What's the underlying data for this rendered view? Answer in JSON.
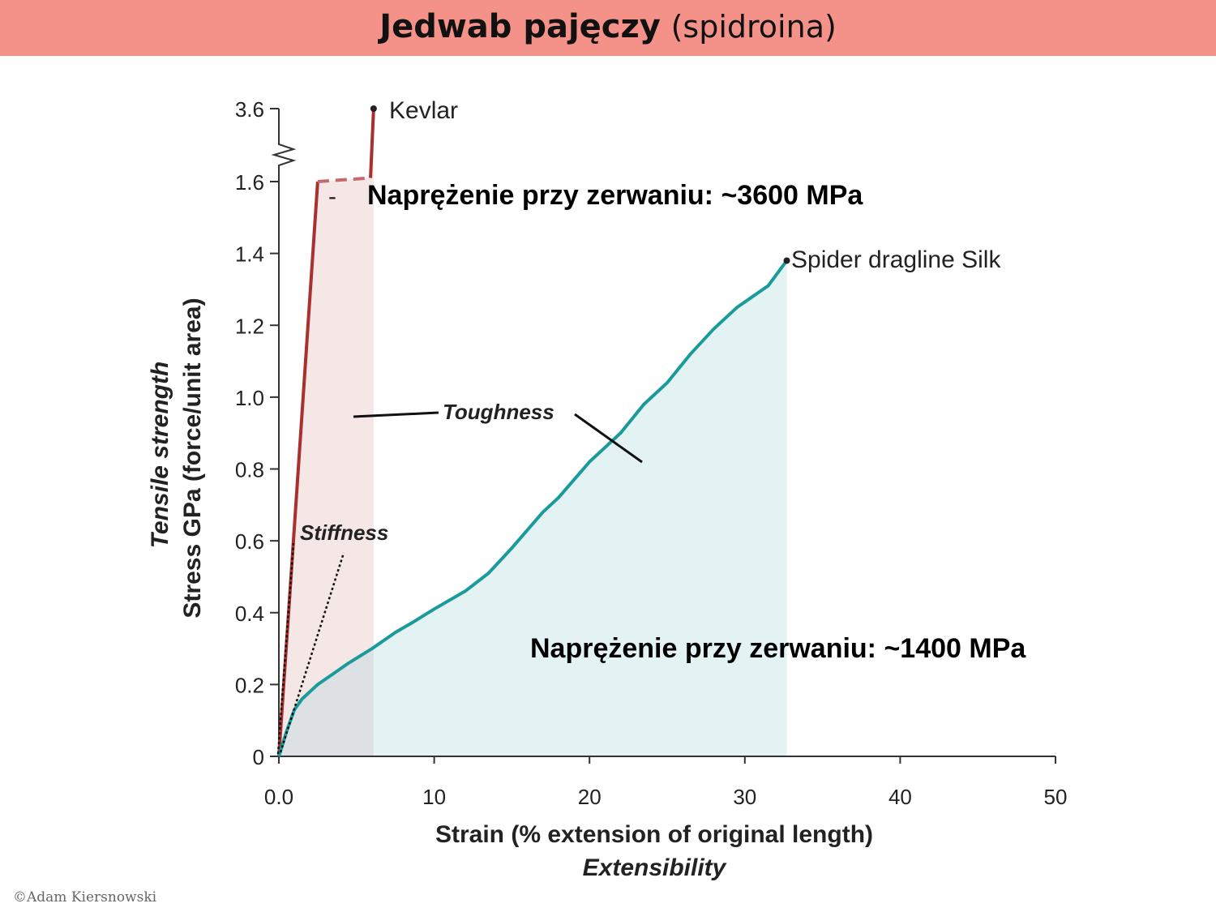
{
  "slide": {
    "title_bold": "Jedwab pajęczy",
    "title_normal": "(spidroina)",
    "copyright": "©Adam Kiersnowski"
  },
  "notes": {
    "kevlar_bullet": "-",
    "kevlar_stress": "Naprężenie przy zerwaniu: ~3600 MPa",
    "silk_stress": "Naprężenie przy zerwaniu: ~1400 MPa"
  },
  "chart_data": {
    "type": "line",
    "xlabel": "Strain (% extension of original length)",
    "xlabel2": "Extensibility",
    "ylabel": "Stress GPa (force/unit area)",
    "ylabel2": "Tensile strength",
    "xlim": [
      0,
      50
    ],
    "ylim": [
      0,
      1.6
    ],
    "x_ticks": [
      0,
      10,
      20,
      30,
      40,
      50
    ],
    "x_tick_labels": [
      "0.0",
      "10",
      "20",
      "30",
      "40",
      "50"
    ],
    "y_ticks": [
      0,
      0.2,
      0.4,
      0.6,
      0.8,
      1.0,
      1.2,
      1.4,
      1.6
    ],
    "y_tick_labels": [
      "0",
      "0.2",
      "0.4",
      "0.6",
      "0.8",
      "1.0",
      "1.2",
      "1.4",
      "1.6"
    ],
    "y_break_label": "3.6",
    "y_break_value": 3.6,
    "series": [
      {
        "name": "Kevlar",
        "color": "#a8302f",
        "points": [
          [
            0,
            0
          ],
          [
            2.5,
            1.6
          ]
        ],
        "dashed_points": [
          [
            2.5,
            1.6
          ],
          [
            5.9,
            1.7
          ]
        ],
        "break_points": [
          [
            5.9,
            1.7
          ],
          [
            6.1,
            3.6
          ]
        ],
        "end": [
          6.1,
          3.6
        ],
        "fill_to_x": 6.1,
        "fill_color": "#f5e7e6"
      },
      {
        "name": "Spider dragline Silk",
        "color": "#1a9a9a",
        "points": [
          [
            0,
            0
          ],
          [
            0.5,
            0.07
          ],
          [
            1,
            0.13
          ],
          [
            1.5,
            0.16
          ],
          [
            2.5,
            0.2
          ],
          [
            3.5,
            0.23
          ],
          [
            4.5,
            0.26
          ],
          [
            6,
            0.3
          ],
          [
            7.5,
            0.345
          ],
          [
            8.5,
            0.37
          ],
          [
            10,
            0.41
          ],
          [
            12,
            0.46
          ],
          [
            13.5,
            0.51
          ],
          [
            15,
            0.58
          ],
          [
            16,
            0.63
          ],
          [
            17,
            0.68
          ],
          [
            18,
            0.72
          ],
          [
            19,
            0.77
          ],
          [
            20,
            0.82
          ],
          [
            21,
            0.86
          ],
          [
            22,
            0.9
          ],
          [
            23.5,
            0.98
          ],
          [
            25,
            1.04
          ],
          [
            26.5,
            1.12
          ],
          [
            28,
            1.19
          ],
          [
            29.5,
            1.25
          ],
          [
            30.5,
            1.28
          ],
          [
            31.5,
            1.31
          ],
          [
            32.7,
            1.38
          ]
        ],
        "fill_to_x": 32.7,
        "fill_color": "#e3f2f3"
      }
    ],
    "overlap_fill_color": "#dde1e3",
    "annotations": {
      "toughness": "Toughness",
      "stiffness": "Stiffness"
    },
    "grid": false,
    "legend": "none"
  }
}
